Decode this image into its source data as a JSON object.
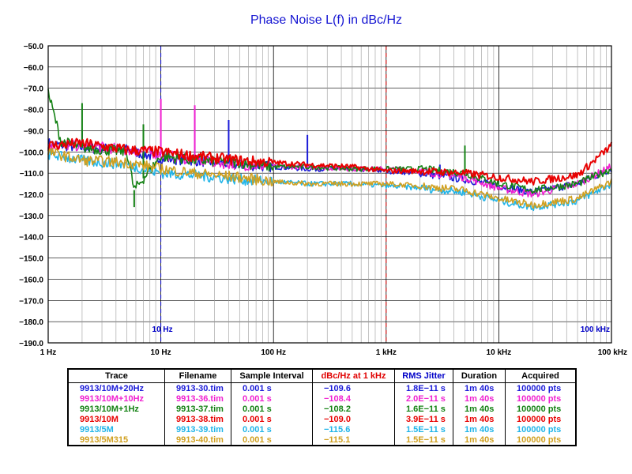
{
  "chart_data": {
    "type": "line",
    "title": "Phase Noise L(f) in dBc/Hz",
    "x_scale": "log",
    "xlim": [
      1,
      100000
    ],
    "ylim": [
      -190,
      -50
    ],
    "x_ticks": [
      "1 Hz",
      "10 Hz",
      "100 Hz",
      "1 kHz",
      "10 kHz",
      "100 kHz"
    ],
    "y_ticks": [
      "-50.0",
      "-60.0",
      "-70.0",
      "-80.0",
      "-90.0",
      "-100.0",
      "-110.0",
      "-120.0",
      "-130.0",
      "-140.0",
      "-150.0",
      "-160.0",
      "-170.0",
      "-180.0",
      "-190.0"
    ],
    "markers": [
      {
        "x": 10,
        "label": "10 Hz",
        "color": "#0000c8"
      },
      {
        "x": 1000,
        "label": "",
        "color": "#e00000"
      },
      {
        "x": 100000,
        "label": "100 kHz",
        "color": "#0000c8"
      }
    ],
    "grid": true,
    "series": [
      {
        "name": "9913/10M+20Hz",
        "color": "#1a1ad8",
        "x": [
          1,
          2,
          5,
          10,
          20,
          50,
          100,
          200,
          500,
          1000,
          2000,
          5000,
          10000,
          20000,
          50000,
          100000
        ],
        "y": [
          -96,
          -98,
          -99,
          -103,
          -104,
          -106,
          -107,
          -108,
          -108,
          -109,
          -110,
          -113,
          -116,
          -119,
          -115,
          -108
        ],
        "spikes": [
          [
            2,
            -90
          ],
          [
            20,
            -79
          ],
          [
            40,
            -85
          ],
          [
            200,
            -92
          ],
          [
            3000,
            -106
          ]
        ]
      },
      {
        "name": "9913/10M+10Hz",
        "color": "#f020d0",
        "x": [
          1,
          2,
          5,
          10,
          20,
          50,
          100,
          200,
          500,
          1000,
          2000,
          5000,
          10000,
          20000,
          50000,
          100000
        ],
        "y": [
          -97,
          -97,
          -99,
          -101,
          -104,
          -106,
          -107,
          -107,
          -108,
          -108,
          -109,
          -112,
          -117,
          -120,
          -115,
          -107
        ],
        "spikes": [
          [
            10,
            -75
          ],
          [
            20,
            -78
          ],
          [
            60,
            -106
          ]
        ]
      },
      {
        "name": "9913/10M+1Hz",
        "color": "#148214",
        "x": [
          1,
          1.3,
          2,
          5,
          5.8,
          10,
          20,
          50,
          100,
          200,
          500,
          1000,
          2000,
          5000,
          10000,
          20000,
          50000,
          100000
        ],
        "y": [
          -72,
          -95,
          -98,
          -100,
          -118,
          -102,
          -104,
          -105,
          -107,
          -107,
          -108,
          -108,
          -108,
          -110,
          -115,
          -118,
          -115,
          -108
        ],
        "spikes": [
          [
            1,
            -72
          ],
          [
            2,
            -77
          ],
          [
            5.8,
            -126
          ],
          [
            7,
            -87
          ],
          [
            5000,
            -97
          ]
        ]
      },
      {
        "name": "9913/10M",
        "color": "#e80000",
        "x": [
          1,
          2,
          5,
          10,
          20,
          50,
          100,
          200,
          500,
          1000,
          2000,
          5000,
          10000,
          20000,
          50000,
          100000
        ],
        "y": [
          -97,
          -96,
          -99,
          -100,
          -102,
          -104,
          -105,
          -106,
          -107,
          -109,
          -109,
          -110,
          -112,
          -114,
          -111,
          -97
        ],
        "spikes": []
      },
      {
        "name": "9913/5M",
        "color": "#20b4e8",
        "x": [
          1,
          2,
          5,
          10,
          20,
          50,
          100,
          200,
          500,
          1000,
          2000,
          5000,
          10000,
          20000,
          50000,
          100000
        ],
        "y": [
          -101,
          -104,
          -106,
          -110,
          -111,
          -113,
          -114,
          -115,
          -115,
          -116,
          -117,
          -119,
          -123,
          -126,
          -123,
          -115
        ],
        "spikes": []
      },
      {
        "name": "9913/5M315",
        "color": "#d0a020",
        "x": [
          1,
          2,
          5,
          10,
          20,
          50,
          100,
          200,
          500,
          1000,
          2000,
          5000,
          10000,
          20000,
          50000,
          100000
        ],
        "y": [
          -100,
          -104,
          -105,
          -108,
          -110,
          -112,
          -114,
          -115,
          -115,
          -115,
          -116,
          -118,
          -122,
          -125,
          -122,
          -114
        ],
        "spikes": []
      }
    ]
  },
  "legend_table": {
    "headers": [
      "Trace",
      "Filename",
      "Sample Interval",
      "dBc/Hz at 1 kHz",
      "RMS Jitter",
      "Duration",
      "Acquired"
    ],
    "rows": [
      {
        "color": "#1a1ad8",
        "cells": [
          "9913/10M+20Hz",
          "9913-30.tim",
          "0.001 s",
          "−109.6",
          "1.8E−11 s",
          "1m 40s",
          "100000 pts"
        ]
      },
      {
        "color": "#f020d0",
        "cells": [
          "9913/10M+10Hz",
          "9913-36.tim",
          "0.001 s",
          "−108.4",
          "2.0E−11 s",
          "1m 40s",
          "100000 pts"
        ]
      },
      {
        "color": "#148214",
        "cells": [
          "9913/10M+1Hz",
          "9913-37.tim",
          "0.001 s",
          "−108.2",
          "1.6E−11 s",
          "1m 40s",
          "100000 pts"
        ]
      },
      {
        "color": "#e80000",
        "cells": [
          "9913/10M",
          "9913-38.tim",
          "0.001 s",
          "−109.0",
          "3.9E−11 s",
          "1m 40s",
          "100000 pts"
        ]
      },
      {
        "color": "#20b4e8",
        "cells": [
          "9913/5M",
          "9913-39.tim",
          "0.001 s",
          "−115.6",
          "1.5E−11 s",
          "1m 40s",
          "100000 pts"
        ]
      },
      {
        "color": "#d0a020",
        "cells": [
          "9913/5M315",
          "9913-40.tim",
          "0.001 s",
          "−115.1",
          "1.5E−11 s",
          "1m 40s",
          "100000 pts"
        ]
      }
    ]
  }
}
